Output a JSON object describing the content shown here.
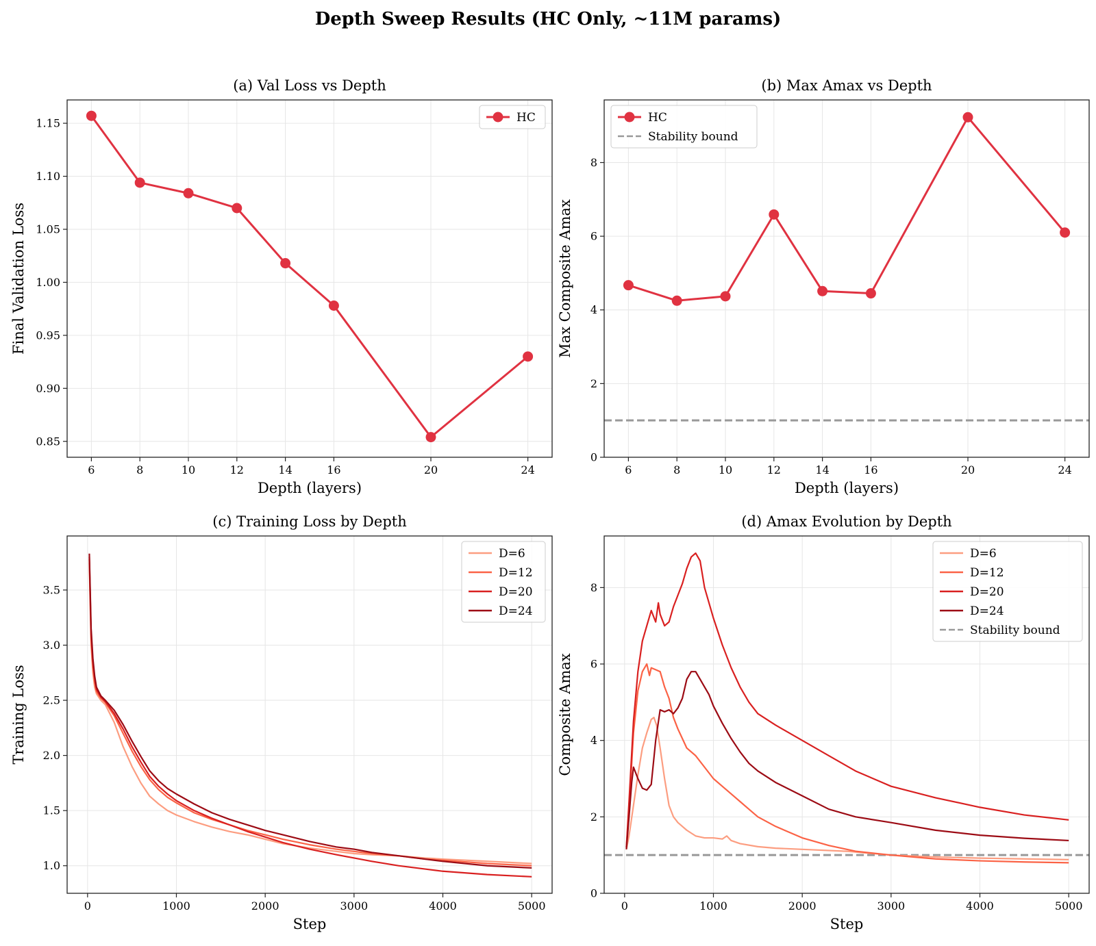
{
  "suptitle": "Depth Sweep Results (HC Only, ~11M params)",
  "colors": {
    "hc": "#e03241",
    "stability": "#999999",
    "d6": "#fc9d80",
    "d12": "#fb6245",
    "d20": "#d92020",
    "d24": "#9c0b14",
    "grid": "#e6e6e6",
    "axis": "#222222"
  },
  "chart_data": [
    {
      "id": "a",
      "type": "line",
      "title": "(a) Val Loss vs Depth",
      "xlabel": "Depth (layers)",
      "ylabel": "Final Validation Loss",
      "xlim": [
        5.0,
        25.0
      ],
      "ylim": [
        0.835,
        1.172
      ],
      "xticks": [
        6,
        8,
        10,
        12,
        14,
        16,
        20,
        24
      ],
      "xtick_labels": [
        "6",
        "8",
        "10",
        "12",
        "14",
        "16",
        "20",
        "24"
      ],
      "yticks": [
        0.85,
        0.9,
        0.95,
        1.0,
        1.05,
        1.1,
        1.15
      ],
      "ytick_labels": [
        "0.85",
        "0.90",
        "0.95",
        "1.00",
        "1.05",
        "1.10",
        "1.15"
      ],
      "legend_position": "upper right",
      "series": [
        {
          "name": "HC",
          "color_key": "hc",
          "marker": true,
          "x": [
            6,
            8,
            10,
            12,
            14,
            16,
            20,
            24
          ],
          "y": [
            1.157,
            1.094,
            1.084,
            1.07,
            1.018,
            0.978,
            0.854,
            0.93
          ]
        }
      ]
    },
    {
      "id": "b",
      "type": "line",
      "title": "(b) Max Amax vs Depth",
      "xlabel": "Depth (layers)",
      "ylabel": "Max Composite Amax",
      "xlim": [
        5.0,
        25.0
      ],
      "ylim": [
        0,
        9.7
      ],
      "xticks": [
        6,
        8,
        10,
        12,
        14,
        16,
        20,
        24
      ],
      "xtick_labels": [
        "6",
        "8",
        "10",
        "12",
        "14",
        "16",
        "20",
        "24"
      ],
      "yticks": [
        0,
        2,
        4,
        6,
        8
      ],
      "ytick_labels": [
        "0",
        "2",
        "4",
        "6",
        "8"
      ],
      "legend_position": "upper left",
      "series": [
        {
          "name": "HC",
          "color_key": "hc",
          "marker": true,
          "x": [
            6,
            8,
            10,
            12,
            14,
            16,
            20,
            24
          ],
          "y": [
            4.67,
            4.25,
            4.37,
            6.59,
            4.51,
            4.45,
            9.23,
            6.1
          ]
        }
      ],
      "hlines": [
        {
          "name": "Stability bound",
          "y": 1.0,
          "color_key": "stability",
          "dashed": true
        }
      ]
    },
    {
      "id": "c",
      "type": "line",
      "title": "(c) Training Loss by Depth",
      "xlabel": "Step",
      "ylabel": "Training Loss",
      "xlim": [
        -230,
        5230
      ],
      "ylim": [
        0.75,
        3.99
      ],
      "xticks": [
        0,
        1000,
        2000,
        3000,
        4000,
        5000
      ],
      "xtick_labels": [
        "0",
        "1000",
        "2000",
        "3000",
        "4000",
        "5000"
      ],
      "yticks": [
        1.0,
        1.5,
        2.0,
        2.5,
        3.0,
        3.5
      ],
      "ytick_labels": [
        "1.0",
        "1.5",
        "2.0",
        "2.5",
        "3.0",
        "3.5"
      ],
      "legend_position": "upper right",
      "series": [
        {
          "name": "D=6",
          "color_key": "d6",
          "x": [
            20,
            40,
            60,
            80,
            100,
            150,
            200,
            300,
            400,
            500,
            600,
            700,
            800,
            900,
            1000,
            1200,
            1400,
            1600,
            1800,
            2000,
            2200,
            2500,
            2800,
            3000,
            3200,
            3500,
            3800,
            4000,
            4500,
            5000
          ],
          "y": [
            3.75,
            3.0,
            2.75,
            2.62,
            2.56,
            2.5,
            2.46,
            2.3,
            2.08,
            1.9,
            1.75,
            1.63,
            1.56,
            1.5,
            1.46,
            1.4,
            1.35,
            1.31,
            1.28,
            1.24,
            1.2,
            1.16,
            1.13,
            1.11,
            1.1,
            1.09,
            1.07,
            1.06,
            1.04,
            1.02
          ]
        },
        {
          "name": "D=12",
          "color_key": "d12",
          "x": [
            20,
            40,
            60,
            80,
            100,
            150,
            200,
            300,
            400,
            500,
            600,
            700,
            800,
            900,
            1000,
            1200,
            1400,
            1600,
            1800,
            2000,
            2200,
            2500,
            2800,
            3000,
            3200,
            3500,
            3800,
            4000,
            4500,
            5000
          ],
          "y": [
            3.78,
            3.05,
            2.8,
            2.66,
            2.58,
            2.52,
            2.48,
            2.36,
            2.2,
            2.04,
            1.9,
            1.78,
            1.69,
            1.62,
            1.57,
            1.48,
            1.42,
            1.37,
            1.32,
            1.28,
            1.24,
            1.19,
            1.15,
            1.13,
            1.11,
            1.09,
            1.06,
            1.05,
            1.02,
            1.0
          ]
        },
        {
          "name": "D=20",
          "color_key": "d20",
          "x": [
            20,
            40,
            60,
            80,
            100,
            150,
            200,
            300,
            400,
            500,
            600,
            700,
            800,
            900,
            1000,
            1200,
            1400,
            1600,
            1800,
            2000,
            2200,
            2500,
            2800,
            3000,
            3200,
            3500,
            3800,
            4000,
            4500,
            5000
          ],
          "y": [
            3.8,
            3.1,
            2.85,
            2.7,
            2.6,
            2.53,
            2.49,
            2.38,
            2.24,
            2.08,
            1.94,
            1.81,
            1.72,
            1.65,
            1.59,
            1.5,
            1.43,
            1.37,
            1.31,
            1.26,
            1.21,
            1.15,
            1.1,
            1.07,
            1.04,
            1.0,
            0.97,
            0.95,
            0.92,
            0.9
          ]
        },
        {
          "name": "D=24",
          "color_key": "d24",
          "x": [
            20,
            40,
            60,
            80,
            100,
            150,
            200,
            300,
            400,
            500,
            600,
            700,
            800,
            900,
            1000,
            1200,
            1400,
            1600,
            1800,
            2000,
            2200,
            2500,
            2800,
            3000,
            3200,
            3500,
            3800,
            4000,
            4500,
            5000
          ],
          "y": [
            3.83,
            3.15,
            2.88,
            2.72,
            2.62,
            2.54,
            2.5,
            2.41,
            2.28,
            2.13,
            1.99,
            1.86,
            1.77,
            1.7,
            1.65,
            1.56,
            1.48,
            1.42,
            1.37,
            1.32,
            1.28,
            1.22,
            1.17,
            1.15,
            1.12,
            1.09,
            1.06,
            1.04,
            1.0,
            0.98
          ]
        }
      ]
    },
    {
      "id": "d",
      "type": "line",
      "title": "(d) Amax Evolution by Depth",
      "xlabel": "Step",
      "ylabel": "Composite Amax",
      "xlim": [
        -230,
        5230
      ],
      "ylim": [
        0,
        9.35
      ],
      "xticks": [
        0,
        1000,
        2000,
        3000,
        4000,
        5000
      ],
      "xtick_labels": [
        "0",
        "1000",
        "2000",
        "3000",
        "4000",
        "5000"
      ],
      "yticks": [
        0,
        2,
        4,
        6,
        8
      ],
      "ytick_labels": [
        "0",
        "2",
        "4",
        "6",
        "8"
      ],
      "legend_position": "upper right",
      "series": [
        {
          "name": "D=6",
          "color_key": "d6",
          "x": [
            20,
            50,
            100,
            150,
            200,
            250,
            300,
            330,
            360,
            400,
            450,
            500,
            550,
            600,
            700,
            800,
            900,
            1000,
            1100,
            1150,
            1200,
            1300,
            1500,
            1700,
            2000,
            2500,
            3000,
            3500,
            4000,
            4500,
            5000
          ],
          "y": [
            1.15,
            1.5,
            2.3,
            3.1,
            3.8,
            4.2,
            4.55,
            4.6,
            4.4,
            3.8,
            3.0,
            2.3,
            2.0,
            1.85,
            1.65,
            1.5,
            1.45,
            1.45,
            1.42,
            1.5,
            1.38,
            1.3,
            1.22,
            1.18,
            1.15,
            1.1,
            1.0,
            0.95,
            0.92,
            0.9,
            0.88
          ]
        },
        {
          "name": "D=12",
          "color_key": "d12",
          "x": [
            20,
            50,
            100,
            150,
            200,
            250,
            280,
            300,
            350,
            400,
            450,
            500,
            550,
            600,
            650,
            700,
            800,
            900,
            1000,
            1100,
            1200,
            1300,
            1400,
            1500,
            1700,
            2000,
            2300,
            2600,
            3000,
            3500,
            4000,
            4500,
            5000
          ],
          "y": [
            1.2,
            2.2,
            4.2,
            5.3,
            5.8,
            6.0,
            5.7,
            5.9,
            5.85,
            5.8,
            5.4,
            5.1,
            4.6,
            4.3,
            4.05,
            3.8,
            3.6,
            3.3,
            3.0,
            2.8,
            2.6,
            2.4,
            2.2,
            2.0,
            1.75,
            1.45,
            1.25,
            1.1,
            1.0,
            0.9,
            0.85,
            0.82,
            0.8
          ]
        },
        {
          "name": "D=20",
          "color_key": "d20",
          "x": [
            20,
            50,
            100,
            150,
            200,
            250,
            300,
            350,
            380,
            400,
            450,
            500,
            550,
            600,
            650,
            700,
            750,
            800,
            850,
            900,
            1000,
            1100,
            1200,
            1300,
            1400,
            1500,
            1700,
            2000,
            2300,
            2600,
            3000,
            3500,
            4000,
            4500,
            5000
          ],
          "y": [
            1.2,
            2.4,
            4.5,
            5.8,
            6.6,
            7.0,
            7.4,
            7.1,
            7.6,
            7.3,
            7.0,
            7.1,
            7.5,
            7.8,
            8.1,
            8.5,
            8.8,
            8.9,
            8.7,
            8.0,
            7.2,
            6.5,
            5.9,
            5.4,
            5.0,
            4.7,
            4.4,
            4.0,
            3.6,
            3.2,
            2.8,
            2.5,
            2.25,
            2.05,
            1.92
          ]
        },
        {
          "name": "D=24",
          "color_key": "d24",
          "x": [
            20,
            50,
            80,
            100,
            150,
            200,
            250,
            300,
            350,
            400,
            450,
            500,
            550,
            600,
            650,
            700,
            750,
            800,
            850,
            900,
            950,
            1000,
            1100,
            1200,
            1300,
            1400,
            1500,
            1700,
            2000,
            2300,
            2600,
            3000,
            3500,
            4000,
            4500,
            5000
          ],
          "y": [
            1.15,
            2.0,
            2.9,
            3.3,
            3.0,
            2.75,
            2.7,
            2.85,
            4.0,
            4.8,
            4.75,
            4.8,
            4.7,
            4.85,
            5.1,
            5.6,
            5.8,
            5.8,
            5.6,
            5.4,
            5.2,
            4.9,
            4.45,
            4.05,
            3.7,
            3.4,
            3.2,
            2.9,
            2.55,
            2.2,
            2.0,
            1.85,
            1.65,
            1.52,
            1.44,
            1.38
          ]
        }
      ],
      "hlines": [
        {
          "name": "Stability bound",
          "y": 1.0,
          "color_key": "stability",
          "dashed": true
        }
      ]
    }
  ]
}
